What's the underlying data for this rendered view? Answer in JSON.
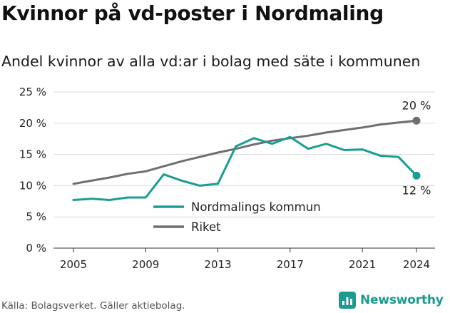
{
  "header": {
    "title": "Kvinnor på vd-poster i Nordmaling",
    "subtitle": "Andel kvinnor av alla vd:ar i bolag med säte i kommunen"
  },
  "footer": {
    "source": "Källa: Bolagsverket. Gäller aktiebolag.",
    "brand": "Newsworthy",
    "brand_icon": "bar-chart-icon"
  },
  "colors": {
    "kommun": "#1a9e92",
    "riket": "#6e6e73",
    "grid": "#dcdcdc",
    "brand": "#1d9a8e"
  },
  "chart_data": {
    "type": "line",
    "x": [
      2005,
      2006,
      2007,
      2008,
      2009,
      2010,
      2011,
      2012,
      2013,
      2014,
      2015,
      2016,
      2017,
      2018,
      2019,
      2020,
      2021,
      2022,
      2023,
      2024
    ],
    "series": [
      {
        "name": "Nordmalings kommun",
        "values": [
          7.7,
          7.9,
          7.7,
          8.1,
          8.1,
          11.8,
          10.8,
          10.0,
          10.3,
          16.3,
          17.6,
          16.7,
          17.8,
          15.9,
          16.7,
          15.7,
          15.8,
          14.8,
          14.6,
          11.6
        ],
        "end_label": "12 %"
      },
      {
        "name": "Riket",
        "values": [
          10.3,
          10.8,
          11.3,
          11.9,
          12.3,
          13.1,
          13.9,
          14.6,
          15.3,
          15.9,
          16.6,
          17.2,
          17.6,
          18.0,
          18.5,
          18.9,
          19.3,
          19.8,
          20.1,
          20.4
        ],
        "end_label": "20 %"
      }
    ],
    "x_ticks": [
      "2005",
      "2009",
      "2013",
      "2017",
      "2021",
      "2024"
    ],
    "y_ticks": [
      "0 %",
      "5 %",
      "10 %",
      "15 %",
      "20 %",
      "25 %"
    ],
    "ylim": [
      0,
      25
    ],
    "xlim": [
      2005,
      2024
    ],
    "grid": "horizontal",
    "legend": "inside, lower center"
  }
}
